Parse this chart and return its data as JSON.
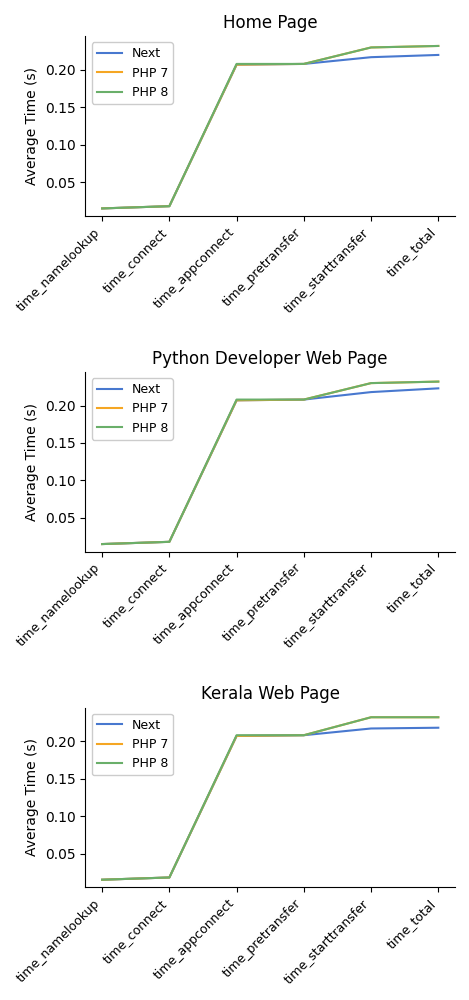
{
  "subplots": [
    {
      "title": "Home Page",
      "series": {
        "Next": [
          0.015,
          0.018,
          0.207,
          0.208,
          0.217,
          0.22
        ],
        "PHP 7": [
          0.015,
          0.018,
          0.207,
          0.208,
          0.23,
          0.232
        ],
        "PHP 8": [
          0.015,
          0.018,
          0.208,
          0.208,
          0.23,
          0.232
        ]
      }
    },
    {
      "title": "Python Developer Web Page",
      "series": {
        "Next": [
          0.015,
          0.018,
          0.207,
          0.208,
          0.218,
          0.223
        ],
        "PHP 7": [
          0.015,
          0.018,
          0.207,
          0.208,
          0.23,
          0.232
        ],
        "PHP 8": [
          0.015,
          0.018,
          0.208,
          0.208,
          0.23,
          0.232
        ]
      }
    },
    {
      "title": "Kerala Web Page",
      "series": {
        "Next": [
          0.015,
          0.018,
          0.207,
          0.208,
          0.217,
          0.218
        ],
        "PHP 7": [
          0.015,
          0.018,
          0.207,
          0.208,
          0.232,
          0.232
        ],
        "PHP 8": [
          0.015,
          0.018,
          0.208,
          0.208,
          0.232,
          0.232
        ]
      }
    }
  ],
  "x_labels": [
    "time_namelookup",
    "time_connect",
    "time_appconnect",
    "time_pretransfer",
    "time_starttransfer",
    "time_total"
  ],
  "colors": {
    "Next": "#4878cf",
    "PHP 7": "#f5a623",
    "PHP 8": "#6aaf6a"
  },
  "ylabel": "Average Time (s)",
  "ylim": [
    0.005,
    0.245
  ],
  "yticks": [
    0.05,
    0.1,
    0.15,
    0.2
  ],
  "figsize": [
    4.69,
    10.0
  ],
  "dpi": 100
}
